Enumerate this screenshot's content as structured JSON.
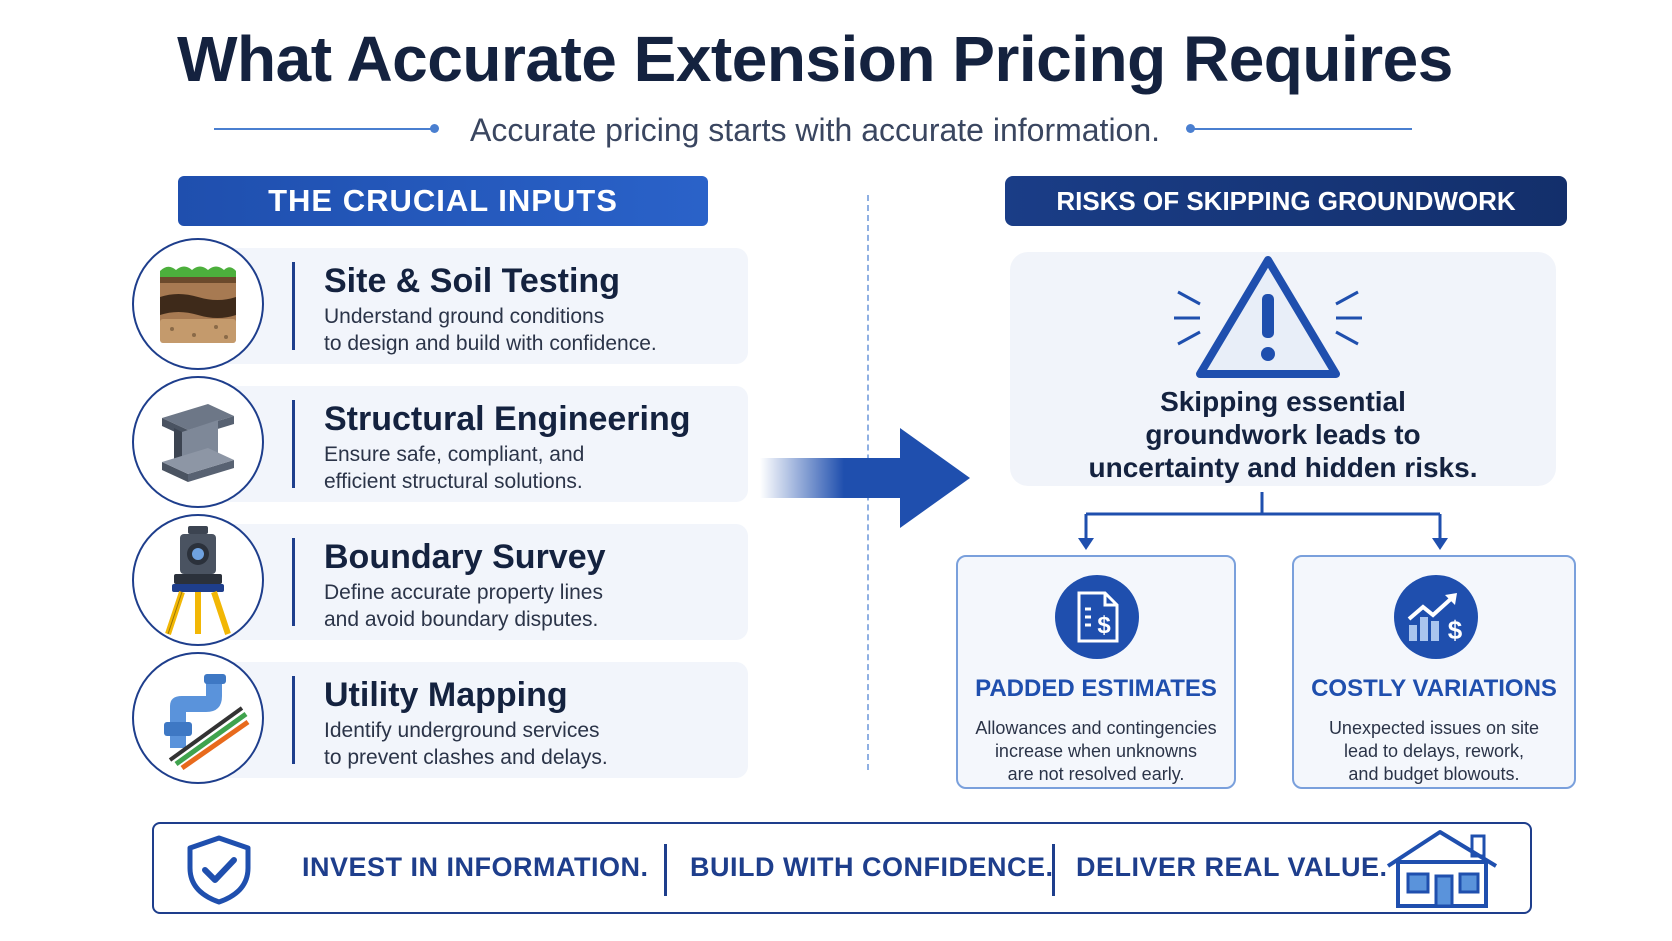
{
  "title": "What Accurate Extension Pricing Requires",
  "subtitle": "Accurate pricing starts with accurate information.",
  "left_header": "THE CRUCIAL INPUTS",
  "right_header": "RISKS OF SKIPPING GROUNDWORK",
  "inputs": [
    {
      "title": "Site & Soil Testing",
      "desc_line1": "Understand ground conditions",
      "desc_line2": "to design and build with confidence.",
      "icon": "soil-layers-icon"
    },
    {
      "title": "Structural Engineering",
      "desc_line1": "Ensure safe, compliant, and",
      "desc_line2": "efficient structural solutions.",
      "icon": "steel-beam-icon"
    },
    {
      "title": "Boundary Survey",
      "desc_line1": "Define accurate property lines",
      "desc_line2": "and avoid boundary disputes.",
      "icon": "total-station-icon"
    },
    {
      "title": "Utility Mapping",
      "desc_line1": "Identify underground services",
      "desc_line2": "to prevent clashes and delays.",
      "icon": "utility-pipes-icon"
    }
  ],
  "risk": {
    "line1": "Skipping essential",
    "line2": "groundwork leads to",
    "line3": "uncertainty and hidden risks.",
    "icon": "warning-triangle-icon"
  },
  "outcomes": [
    {
      "title": "PADDED ESTIMATES",
      "line1": "Allowances and contingencies",
      "line2": "increase when unknowns",
      "line3": "are not resolved early.",
      "icon": "estimate-document-icon"
    },
    {
      "title": "COSTLY VARIATIONS",
      "line1": "Unexpected issues on site",
      "line2": "lead to delays, rework,",
      "line3": "and budget blowouts.",
      "icon": "rising-cost-icon"
    }
  ],
  "banner": {
    "slogan1": "INVEST IN INFORMATION.",
    "slogan2": "BUILD WITH CONFIDENCE.",
    "slogan3": "DELIVER REAL VALUE.",
    "left_icon": "shield-check-icon",
    "right_icon": "house-icon"
  },
  "colors": {
    "primary": "#1f4fae",
    "dark_navy": "#14223f",
    "accent_line": "#4a7fd0",
    "card_bg": "#f2f5fb"
  }
}
